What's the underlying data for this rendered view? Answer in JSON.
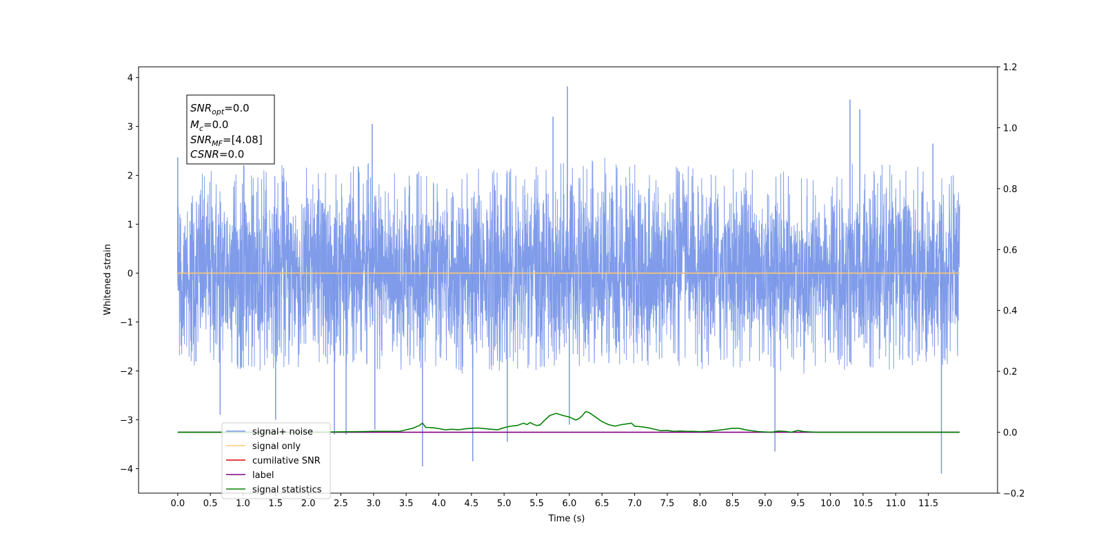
{
  "chart_data": {
    "type": "line",
    "xlabel": "Time (s)",
    "ylabel": "Whitened strain",
    "xlim": [
      -0.6,
      12.56
    ],
    "ylim": [
      -4.5,
      4.22
    ],
    "y2lim": [
      -0.2,
      1.2
    ],
    "x_ticks": [
      0.0,
      0.5,
      1.0,
      1.5,
      2.0,
      2.5,
      3.0,
      3.5,
      4.0,
      4.5,
      5.0,
      5.5,
      6.0,
      6.5,
      7.0,
      7.5,
      8.0,
      8.5,
      9.0,
      9.5,
      10.0,
      10.5,
      11.0,
      11.5
    ],
    "x_tick_labels": [
      "0.0",
      "0.5",
      "1.0",
      "1.5",
      "2.0",
      "2.5",
      "3.0",
      "3.5",
      "4.0",
      "4.5",
      "5.0",
      "5.5",
      "6.0",
      "6.5",
      "7.0",
      "7.5",
      "8.0",
      "8.5",
      "9.0",
      "9.5",
      "10.0",
      "10.5",
      "11.0",
      "11.5"
    ],
    "y_ticks": [
      -4,
      -3,
      -2,
      -1,
      0,
      1,
      2,
      3,
      4
    ],
    "y_tick_labels": [
      "−4",
      "−3",
      "−2",
      "−1",
      "0",
      "1",
      "2",
      "3",
      "4"
    ],
    "y2_ticks": [
      -0.2,
      0.0,
      0.2,
      0.4,
      0.6,
      0.8,
      1.0,
      1.2
    ],
    "y2_tick_labels": [
      "−0.2",
      "0.0",
      "0.2",
      "0.4",
      "0.6",
      "0.8",
      "1.0",
      "1.2"
    ],
    "grid": false,
    "legend_position": "lower-left",
    "legend": [
      {
        "label": "signal+ noise",
        "color": "#7896e8"
      },
      {
        "label": "signal only",
        "color": "#ffc870"
      },
      {
        "label": "cumilative SNR",
        "color": "#e00000"
      },
      {
        "label": "label",
        "color": "#800080"
      },
      {
        "label": "signal statistics",
        "color": "#008000"
      }
    ],
    "annotation": {
      "lines": [
        {
          "sym": "SNR",
          "sub": "opt",
          "rest": "=0.0"
        },
        {
          "sym": "M",
          "sub": "c",
          "rest": "=0.0"
        },
        {
          "sym": "SNR",
          "sub": "MF",
          "rest": "=[4.08]"
        },
        {
          "sym": "CSNR",
          "sub": "",
          "rest": "=0.0"
        }
      ]
    },
    "series": [
      {
        "name": "signal+ noise",
        "axis": "left",
        "color": "#7896e8",
        "x_range": [
          0.0,
          11.98
        ],
        "envelope_upper": [
          2.3,
          2.2,
          2.3,
          2.1,
          2.2,
          2.4,
          2.2,
          2.1,
          2.3,
          2.2
        ],
        "envelope_lower": [
          -1.9,
          -2.0,
          -1.9,
          -2.1,
          -2.0,
          -1.9,
          -2.0,
          -2.1,
          -2.0,
          -1.9
        ],
        "peaks": [
          {
            "x": 0.0,
            "y": 2.37
          },
          {
            "x": 0.65,
            "y": -2.9
          },
          {
            "x": 1.5,
            "y": -3.0
          },
          {
            "x": 2.4,
            "y": -3.3
          },
          {
            "x": 2.58,
            "y": -3.3
          },
          {
            "x": 2.98,
            "y": 3.05
          },
          {
            "x": 3.02,
            "y": -3.2
          },
          {
            "x": 3.75,
            "y": -3.95
          },
          {
            "x": 4.52,
            "y": -3.85
          },
          {
            "x": 5.05,
            "y": -3.45
          },
          {
            "x": 5.75,
            "y": 3.2
          },
          {
            "x": 5.97,
            "y": 3.82
          },
          {
            "x": 6.0,
            "y": -3.1
          },
          {
            "x": 9.15,
            "y": -3.65
          },
          {
            "x": 10.3,
            "y": 3.55
          },
          {
            "x": 10.45,
            "y": 3.35
          },
          {
            "x": 11.7,
            "y": -4.1
          },
          {
            "x": 11.57,
            "y": 2.65
          }
        ]
      },
      {
        "name": "signal only",
        "axis": "left",
        "color": "#ffc870",
        "x": [
          0.0,
          11.98
        ],
        "y": [
          0.0,
          0.0
        ]
      },
      {
        "name": "label",
        "axis": "right",
        "color": "#800080",
        "x": [
          0.0,
          11.98
        ],
        "y": [
          0.0,
          0.0
        ]
      },
      {
        "name": "signal statistics",
        "axis": "right",
        "color": "#008000",
        "x": [
          0.0,
          0.5,
          1.0,
          2.0,
          2.8,
          3.0,
          3.4,
          3.5,
          3.6,
          3.7,
          3.75,
          3.8,
          3.9,
          4.0,
          4.1,
          4.2,
          4.3,
          4.4,
          4.5,
          4.6,
          4.7,
          4.8,
          4.9,
          5.0,
          5.1,
          5.2,
          5.3,
          5.35,
          5.4,
          5.45,
          5.5,
          5.55,
          5.6,
          5.7,
          5.8,
          5.9,
          6.0,
          6.1,
          6.15,
          6.2,
          6.25,
          6.3,
          6.4,
          6.5,
          6.6,
          6.7,
          6.8,
          6.9,
          6.95,
          7.0,
          7.1,
          7.2,
          7.3,
          7.4,
          7.5,
          7.6,
          7.7,
          7.8,
          7.9,
          8.0,
          8.1,
          8.2,
          8.3,
          8.4,
          8.5,
          8.6,
          8.7,
          8.8,
          8.9,
          9.0,
          9.1,
          9.2,
          9.3,
          9.4,
          9.5,
          9.6,
          9.7,
          9.8,
          10.0,
          11.0,
          11.98
        ],
        "y": [
          0.0,
          0.0,
          0.0,
          0.0,
          0.002,
          0.003,
          0.003,
          0.008,
          0.013,
          0.022,
          0.03,
          0.016,
          0.015,
          0.012,
          0.008,
          0.01,
          0.008,
          0.011,
          0.013,
          0.014,
          0.012,
          0.01,
          0.008,
          0.015,
          0.02,
          0.022,
          0.03,
          0.025,
          0.032,
          0.026,
          0.022,
          0.024,
          0.035,
          0.055,
          0.062,
          0.055,
          0.05,
          0.04,
          0.045,
          0.055,
          0.068,
          0.065,
          0.05,
          0.035,
          0.025,
          0.02,
          0.025,
          0.028,
          0.03,
          0.02,
          0.018,
          0.015,
          0.01,
          0.005,
          0.006,
          0.003,
          0.004,
          0.003,
          0.003,
          0.002,
          0.003,
          0.005,
          0.007,
          0.01,
          0.013,
          0.013,
          0.008,
          0.005,
          0.002,
          0.001,
          0.0,
          0.004,
          0.003,
          0.0,
          0.006,
          0.002,
          0.001,
          0.0,
          0.0,
          0.0,
          0.0
        ]
      }
    ]
  }
}
